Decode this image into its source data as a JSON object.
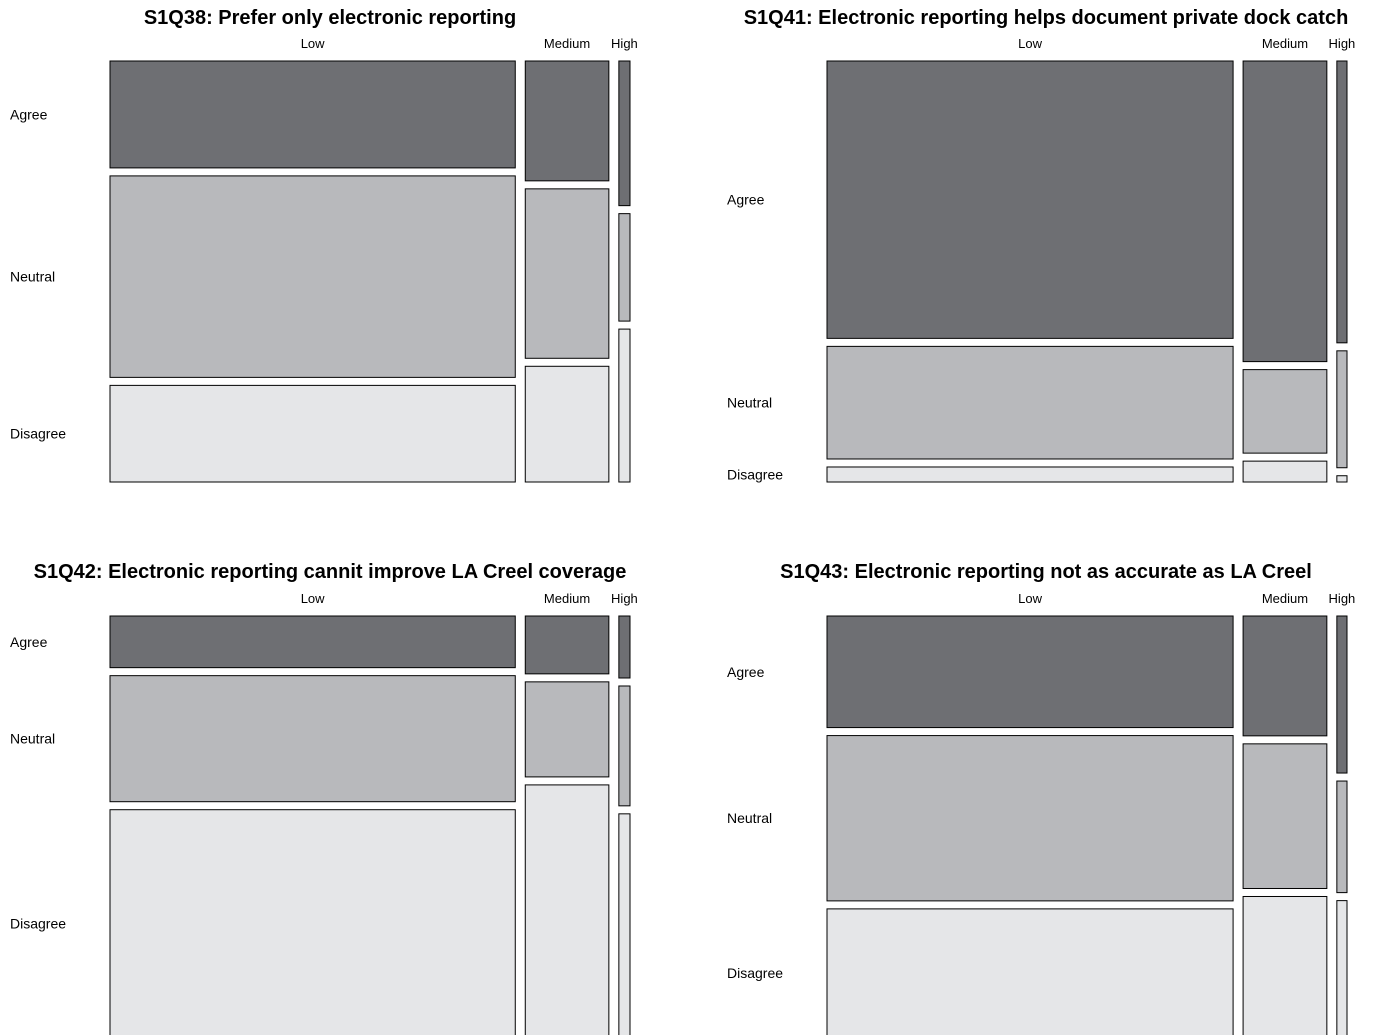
{
  "colors": {
    "Agree": "#6e6f73",
    "Neutral": "#b8b9bc",
    "Disagree": "#e5e6e8"
  },
  "chart_data": [
    {
      "type": "mosaic",
      "title": "S1Q38: Prefer only electronic reporting",
      "columns": [
        "Low",
        "Medium",
        "High"
      ],
      "rows": [
        "Agree",
        "Neutral",
        "Disagree"
      ],
      "column_shares": [
        0.8,
        0.165,
        0.022
      ],
      "row_shares": [
        [
          0.26,
          0.49,
          0.235
        ],
        [
          0.29,
          0.41,
          0.28
        ],
        [
          0.35,
          0.26,
          0.37
        ]
      ]
    },
    {
      "type": "mosaic",
      "title": "S1Q41: Electronic reporting helps document private dock catch",
      "columns": [
        "Low",
        "Medium",
        "High"
      ],
      "rows": [
        "Agree",
        "Neutral",
        "Disagree"
      ],
      "column_shares": [
        0.8,
        0.165,
        0.02
      ],
      "row_shares": [
        [
          0.665,
          0.27,
          0.036
        ],
        [
          0.72,
          0.2,
          0.05
        ],
        [
          0.675,
          0.28,
          0.015
        ]
      ]
    },
    {
      "type": "mosaic",
      "title": "S1Q42: Electronic reporting cannit improve LA Creel coverage",
      "columns": [
        "Low",
        "Medium",
        "High"
      ],
      "rows": [
        "Agree",
        "Neutral",
        "Disagree"
      ],
      "column_shares": [
        0.8,
        0.165,
        0.022
      ],
      "row_shares": [
        [
          0.125,
          0.305,
          0.55
        ],
        [
          0.14,
          0.23,
          0.61
        ],
        [
          0.15,
          0.29,
          0.54
        ]
      ]
    },
    {
      "type": "mosaic",
      "title": "S1Q43: Electronic reporting not as accurate as LA Creel",
      "columns": [
        "Low",
        "Medium",
        "High"
      ],
      "rows": [
        "Agree",
        "Neutral",
        "Disagree"
      ],
      "column_shares": [
        0.8,
        0.165,
        0.02
      ],
      "row_shares": [
        [
          0.27,
          0.4,
          0.31
        ],
        [
          0.29,
          0.35,
          0.34
        ],
        [
          0.38,
          0.27,
          0.33
        ]
      ]
    }
  ]
}
